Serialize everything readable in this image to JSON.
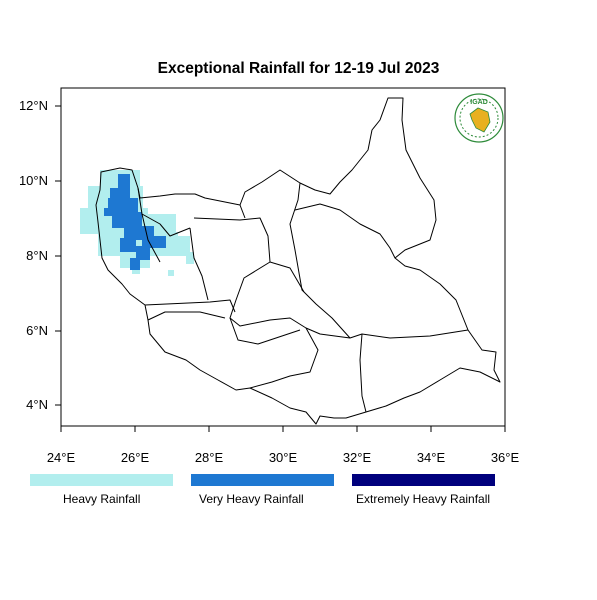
{
  "title": "Exceptional Rainfall for 12-19 Jul 2023",
  "logo_text": "IGAD",
  "y_ticks": [
    "12°N",
    "10°N",
    "8°N",
    "6°N",
    "4°N"
  ],
  "x_ticks": [
    "24°E",
    "26°E",
    "28°E",
    "30°E",
    "32°E",
    "34°E",
    "36°E"
  ],
  "legend": [
    {
      "label": "Heavy Rainfall",
      "color": "#b2eeee"
    },
    {
      "label": "Very Heavy Rainfall",
      "color": "#1e78d2"
    },
    {
      "label": "Extremely Heavy Rainfall",
      "color": "#00007d"
    }
  ],
  "colors": {
    "country_outline": "#000000",
    "logo_green": "#2e8b3a",
    "logo_gold": "#e8b020"
  }
}
